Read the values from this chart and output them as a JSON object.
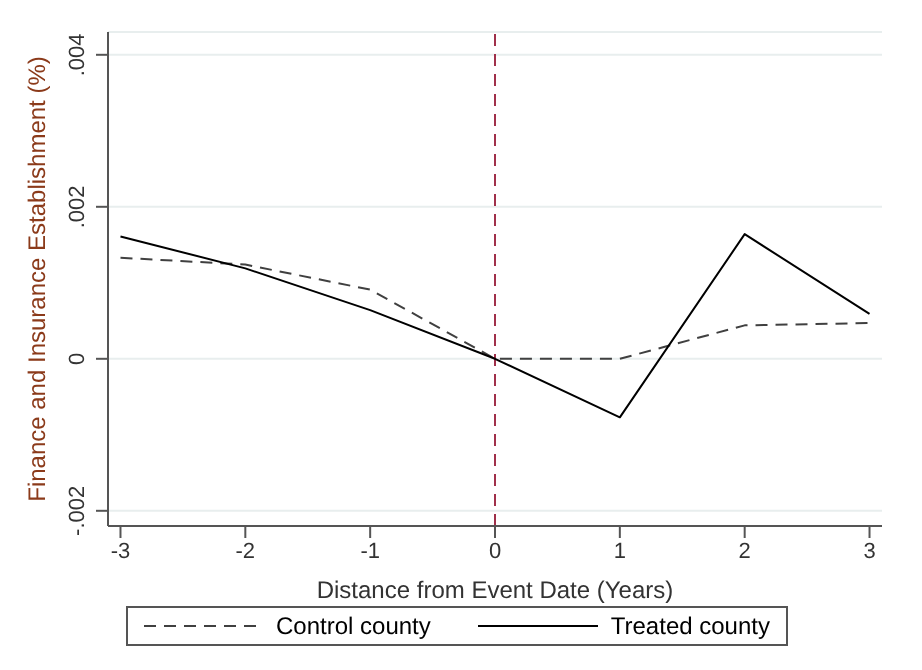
{
  "chart_data": {
    "type": "line",
    "xlabel": "Distance from Event Date (Years)",
    "ylabel": "Finance and Insurance Establishment (%)",
    "x": [
      -3,
      -2,
      -1,
      0,
      1,
      2,
      3
    ],
    "series": [
      {
        "name": "Control county",
        "color": "#404040",
        "line_style": "dashed",
        "values": [
          0.00133,
          0.00124,
          0.00091,
          0,
          0,
          0.00044,
          0.00047
        ]
      },
      {
        "name": "Treated county",
        "color": "#000000",
        "line_style": "solid",
        "values": [
          0.00161,
          0.00119,
          0.00064,
          0,
          -0.00077,
          0.00164,
          0.00059
        ]
      }
    ],
    "xlim": [
      -3.1,
      3.1
    ],
    "xticks": [
      -3,
      -2,
      -1,
      0,
      1,
      2,
      3
    ],
    "ylim": [
      -0.0022,
      0.0043
    ],
    "yticks": [
      {
        "value": -0.002,
        "label": "-.002"
      },
      {
        "value": 0,
        "label": "0"
      },
      {
        "value": 0.002,
        "label": ".002"
      },
      {
        "value": 0.004,
        "label": ".004"
      }
    ],
    "ref_lines": [
      {
        "axis": "x",
        "value": 0,
        "color": "#a0304a",
        "line_style": "dashed"
      }
    ],
    "grid": "y",
    "legend": "bottom",
    "marker": "none"
  }
}
